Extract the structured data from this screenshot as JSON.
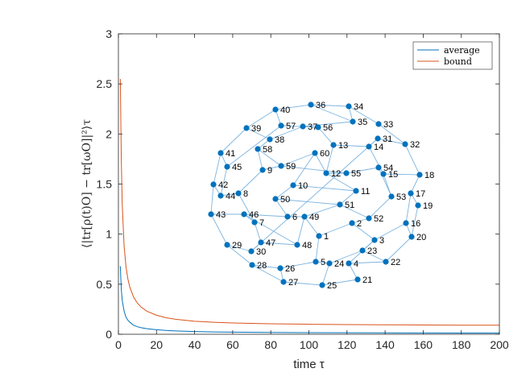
{
  "chart_data": {
    "type": "line",
    "title": "",
    "xlabel": "time τ",
    "ylabel": "⟨|tr[ρ(t)O] − tr[ωO]|²⟩τ",
    "xlim": [
      0,
      200
    ],
    "ylim": [
      0,
      3
    ],
    "xticks": [
      0,
      20,
      40,
      60,
      80,
      100,
      120,
      140,
      160,
      180,
      200
    ],
    "yticks": [
      0,
      0.5,
      1,
      1.5,
      2,
      2.5,
      3
    ],
    "ytick_labels": [
      "0",
      "0.5",
      "1",
      "1.5",
      "2",
      "2.5",
      "3"
    ],
    "grid": false,
    "legend_position": "top-right",
    "series": [
      {
        "name": "average",
        "color": "#0072BD",
        "x": [
          1,
          1.5,
          2,
          3,
          4,
          5,
          6,
          8,
          10,
          12,
          15,
          20,
          25,
          30,
          40,
          50,
          60,
          80,
          100,
          120,
          140,
          160,
          180,
          200
        ],
        "y": [
          0.68,
          0.45,
          0.34,
          0.23,
          0.17,
          0.14,
          0.12,
          0.09,
          0.075,
          0.065,
          0.055,
          0.045,
          0.038,
          0.033,
          0.027,
          0.023,
          0.021,
          0.018,
          0.016,
          0.015,
          0.014,
          0.013,
          0.012,
          0.012
        ]
      },
      {
        "name": "bound",
        "color": "#D95319",
        "x": [
          1,
          1.5,
          2,
          3,
          4,
          5,
          6,
          8,
          10,
          12,
          15,
          20,
          25,
          30,
          40,
          50,
          60,
          80,
          100,
          120,
          140,
          160,
          180,
          200
        ],
        "y": [
          2.55,
          1.75,
          1.3,
          0.88,
          0.67,
          0.55,
          0.47,
          0.37,
          0.31,
          0.27,
          0.23,
          0.19,
          0.165,
          0.15,
          0.13,
          0.12,
          0.113,
          0.105,
          0.1,
          0.097,
          0.095,
          0.093,
          0.091,
          0.09
        ]
      }
    ],
    "inset_graph": {
      "type": "network",
      "node_color": "#0072BD",
      "edge_color": "#7EB5E0",
      "node_labels": [
        "1",
        "2",
        "3",
        "4",
        "5",
        "6",
        "7",
        "8",
        "9",
        "10",
        "11",
        "12",
        "13",
        "14",
        "15",
        "16",
        "17",
        "18",
        "19",
        "20",
        "21",
        "22",
        "23",
        "24",
        "25",
        "26",
        "27",
        "28",
        "29",
        "30",
        "31",
        "32",
        "33",
        "34",
        "35",
        "36",
        "37",
        "38",
        "39",
        "40",
        "41",
        "42",
        "43",
        "44",
        "45",
        "46",
        "47",
        "48",
        "49",
        "50",
        "51",
        "52",
        "53",
        "54",
        "55",
        "56",
        "57",
        "58",
        "59",
        "60"
      ],
      "edges": [
        [
          1,
          2
        ],
        [
          1,
          5
        ],
        [
          1,
          49
        ],
        [
          2,
          3
        ],
        [
          2,
          52
        ],
        [
          3,
          4
        ],
        [
          3,
          16
        ],
        [
          3,
          23
        ],
        [
          4,
          21
        ],
        [
          4,
          22
        ],
        [
          5,
          24
        ],
        [
          5,
          26
        ],
        [
          6,
          49
        ],
        [
          6,
          46
        ],
        [
          6,
          50
        ],
        [
          7,
          8
        ],
        [
          7,
          46
        ],
        [
          7,
          47
        ],
        [
          8,
          9
        ],
        [
          8,
          44
        ],
        [
          9,
          58
        ],
        [
          9,
          59
        ],
        [
          10,
          11
        ],
        [
          10,
          50
        ],
        [
          10,
          60
        ],
        [
          11,
          51
        ],
        [
          11,
          12
        ],
        [
          12,
          55
        ],
        [
          12,
          13
        ],
        [
          13,
          14
        ],
        [
          13,
          56
        ],
        [
          14,
          15
        ],
        [
          14,
          31
        ],
        [
          15,
          18
        ],
        [
          15,
          53
        ],
        [
          16,
          17
        ],
        [
          16,
          20
        ],
        [
          17,
          18
        ],
        [
          17,
          19
        ],
        [
          18,
          32
        ],
        [
          19,
          20
        ],
        [
          20,
          22
        ],
        [
          21,
          25
        ],
        [
          22,
          23
        ],
        [
          23,
          24
        ],
        [
          24,
          25
        ],
        [
          25,
          27
        ],
        [
          26,
          27
        ],
        [
          26,
          28
        ],
        [
          27,
          28
        ],
        [
          28,
          29
        ],
        [
          29,
          30
        ],
        [
          29,
          43
        ],
        [
          30,
          31
        ],
        [
          30,
          47
        ],
        [
          31,
          32
        ],
        [
          32,
          33
        ],
        [
          33,
          34
        ],
        [
          34,
          35
        ],
        [
          34,
          36
        ],
        [
          35,
          36
        ],
        [
          35,
          37
        ],
        [
          36,
          40
        ],
        [
          37,
          38
        ],
        [
          37,
          56
        ],
        [
          38,
          39
        ],
        [
          38,
          58
        ],
        [
          39,
          40
        ],
        [
          39,
          41
        ],
        [
          40,
          57
        ],
        [
          41,
          42
        ],
        [
          41,
          45
        ],
        [
          42,
          43
        ],
        [
          42,
          44
        ],
        [
          43,
          46
        ],
        [
          44,
          45
        ],
        [
          45,
          57
        ],
        [
          46,
          48
        ],
        [
          47,
          48
        ],
        [
          48,
          49
        ],
        [
          49,
          51
        ],
        [
          50,
          51
        ],
        [
          51,
          52
        ],
        [
          52,
          53
        ],
        [
          53,
          54
        ],
        [
          54,
          55
        ],
        [
          55,
          59
        ],
        [
          56,
          57
        ],
        [
          58,
          59
        ],
        [
          59,
          60
        ],
        [
          60,
          12
        ]
      ]
    }
  }
}
